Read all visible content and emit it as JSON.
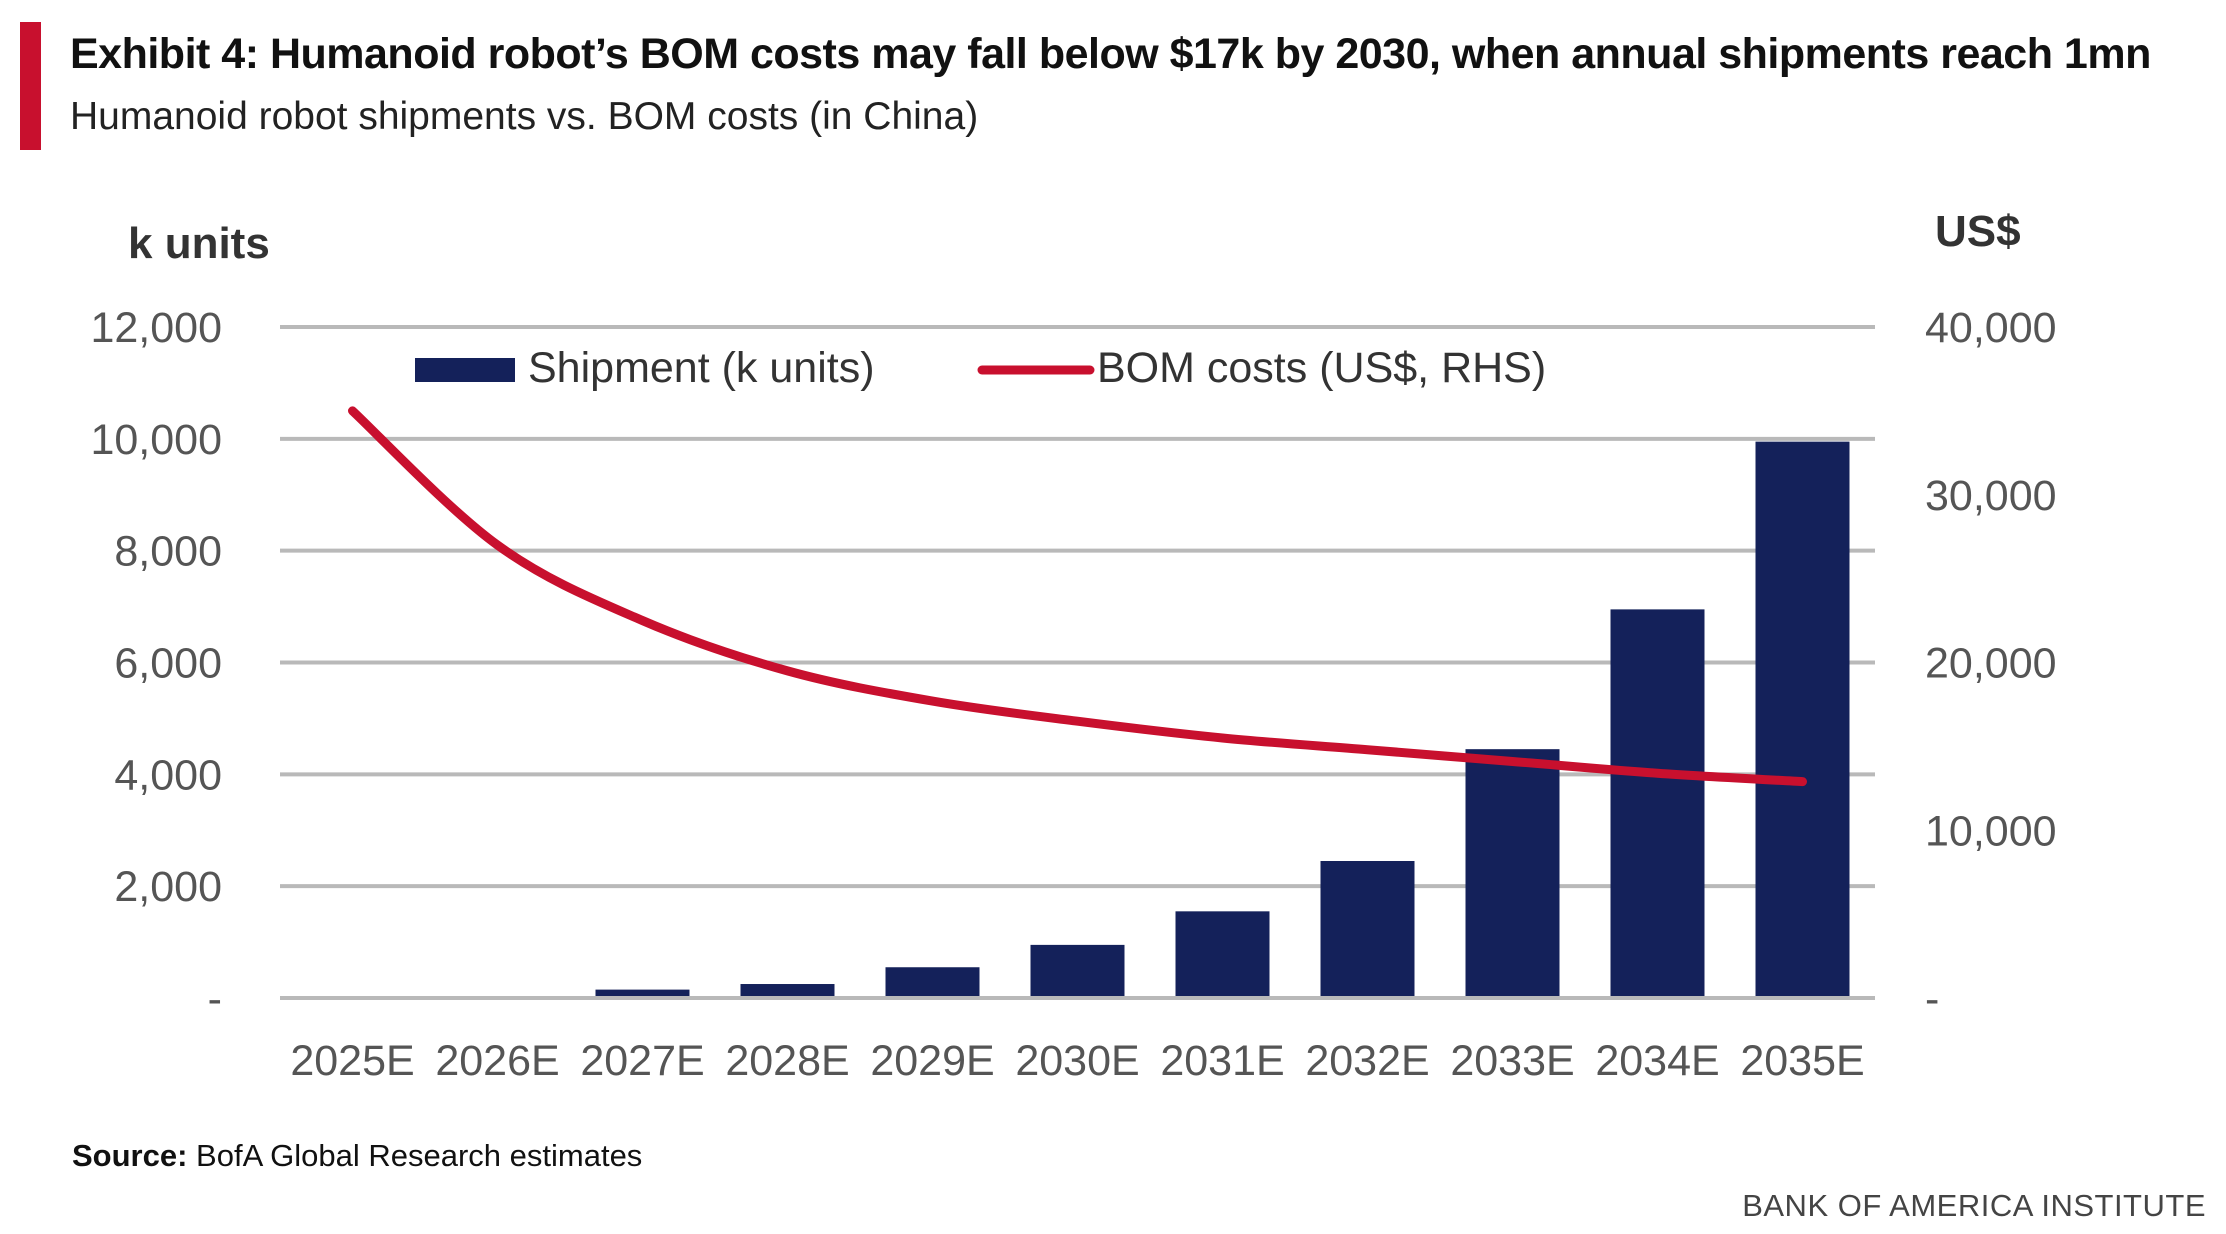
{
  "header": {
    "title": "Exhibit 4: Humanoid robot’s BOM costs may fall below $17k by 2030, when annual shipments reach 1mn",
    "subtitle": "Humanoid robot shipments vs. BOM costs (in China)"
  },
  "footer": {
    "source_label": "Source:",
    "source_text": " BofA Global Research estimates",
    "brand": "BANK OF AMERICA INSTITUTE"
  },
  "colors": {
    "accent": "#c8102e",
    "bar": "#14215a",
    "line": "#c8102e",
    "grid": "#b9b9b9",
    "tick_text": "#555555"
  },
  "chart_data": {
    "type": "bar",
    "secondary_type": "line",
    "categories": [
      "2025E",
      "2026E",
      "2027E",
      "2028E",
      "2029E",
      "2030E",
      "2031E",
      "2032E",
      "2033E",
      "2034E",
      "2035E"
    ],
    "series": [
      {
        "name": "Shipment (k units)",
        "type": "bar",
        "axis": "left",
        "color": "#14215a",
        "values": [
          5,
          20,
          150,
          250,
          550,
          950,
          1550,
          2450,
          4450,
          6950,
          9950
        ]
      },
      {
        "name": "BOM costs (US$, RHS)",
        "type": "line",
        "axis": "right",
        "color": "#c8102e",
        "values": [
          35000,
          27000,
          22500,
          19500,
          17700,
          16500,
          15500,
          14800,
          14100,
          13400,
          12900
        ]
      }
    ],
    "y_left": {
      "label": "k units",
      "ylim": [
        0,
        12000
      ],
      "ticks": [
        0,
        2000,
        4000,
        6000,
        8000,
        10000,
        12000
      ],
      "tick_labels": [
        "-",
        "2,000",
        "4,000",
        "6,000",
        "8,000",
        "10,000",
        "12,000"
      ]
    },
    "y_right": {
      "label": "US$",
      "ylim": [
        0,
        40000
      ],
      "ticks": [
        0,
        10000,
        20000,
        30000,
        40000
      ],
      "tick_labels": [
        "-",
        "10,000",
        "20,000",
        "30,000",
        "40,000"
      ]
    },
    "grid": true,
    "legend_position": "top"
  }
}
